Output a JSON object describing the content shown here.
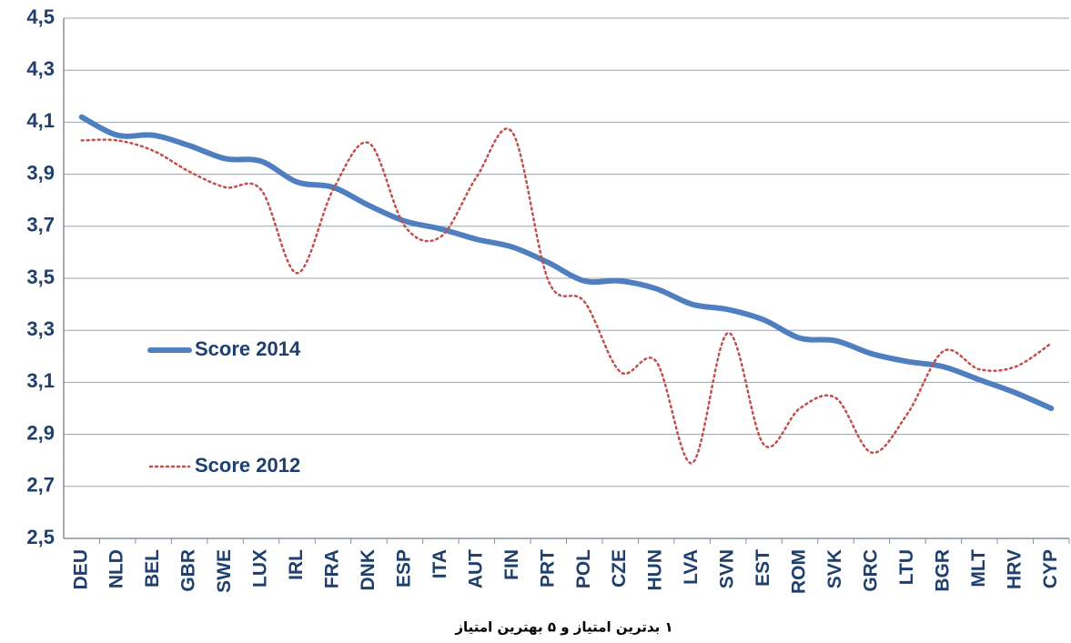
{
  "chart_data": {
    "type": "line",
    "x_label": "۱ بدترین امتیاز و ۵ بهترین امتیاز",
    "categories": [
      "DEU",
      "NLD",
      "BEL",
      "GBR",
      "SWE",
      "LUX",
      "IRL",
      "FRA",
      "DNK",
      "ESP",
      "ITA",
      "AUT",
      "FIN",
      "PRT",
      "POL",
      "CZE",
      "HUN",
      "LVA",
      "SVN",
      "EST",
      "ROM",
      "SVK",
      "GRC",
      "LTU",
      "BGR",
      "MLT",
      "HRV",
      "CYP"
    ],
    "series": [
      {
        "name": "Score 2014",
        "color": "#4f7fc0",
        "style": "solid",
        "values": [
          4.12,
          4.05,
          4.05,
          4.01,
          3.96,
          3.95,
          3.87,
          3.85,
          3.78,
          3.72,
          3.69,
          3.65,
          3.62,
          3.56,
          3.49,
          3.49,
          3.46,
          3.4,
          3.38,
          3.34,
          3.27,
          3.26,
          3.21,
          3.18,
          3.16,
          3.11,
          3.06,
          3.0
        ]
      },
      {
        "name": "Score 2012",
        "color": "#c0504d",
        "style": "dotted",
        "values": [
          4.03,
          4.03,
          3.99,
          3.91,
          3.85,
          3.84,
          3.52,
          3.84,
          4.02,
          3.7,
          3.66,
          3.89,
          4.06,
          3.49,
          3.41,
          3.14,
          3.18,
          2.79,
          3.29,
          2.86,
          3.0,
          3.04,
          2.83,
          2.98,
          3.22,
          3.15,
          3.16,
          3.25
        ]
      }
    ],
    "ylim": [
      2.5,
      4.5
    ],
    "yticks": [
      {
        "value": 2.5,
        "label": "2,5"
      },
      {
        "value": 2.7,
        "label": "2,7"
      },
      {
        "value": 2.9,
        "label": "2,9"
      },
      {
        "value": 3.1,
        "label": "3,1"
      },
      {
        "value": 3.3,
        "label": "3,3"
      },
      {
        "value": 3.5,
        "label": "3,5"
      },
      {
        "value": 3.7,
        "label": "3,7"
      },
      {
        "value": 3.9,
        "label": "3,9"
      },
      {
        "value": 4.1,
        "label": "4,1"
      },
      {
        "value": 4.3,
        "label": "4,3"
      },
      {
        "value": 4.5,
        "label": "4,5"
      }
    ],
    "grid": true
  }
}
